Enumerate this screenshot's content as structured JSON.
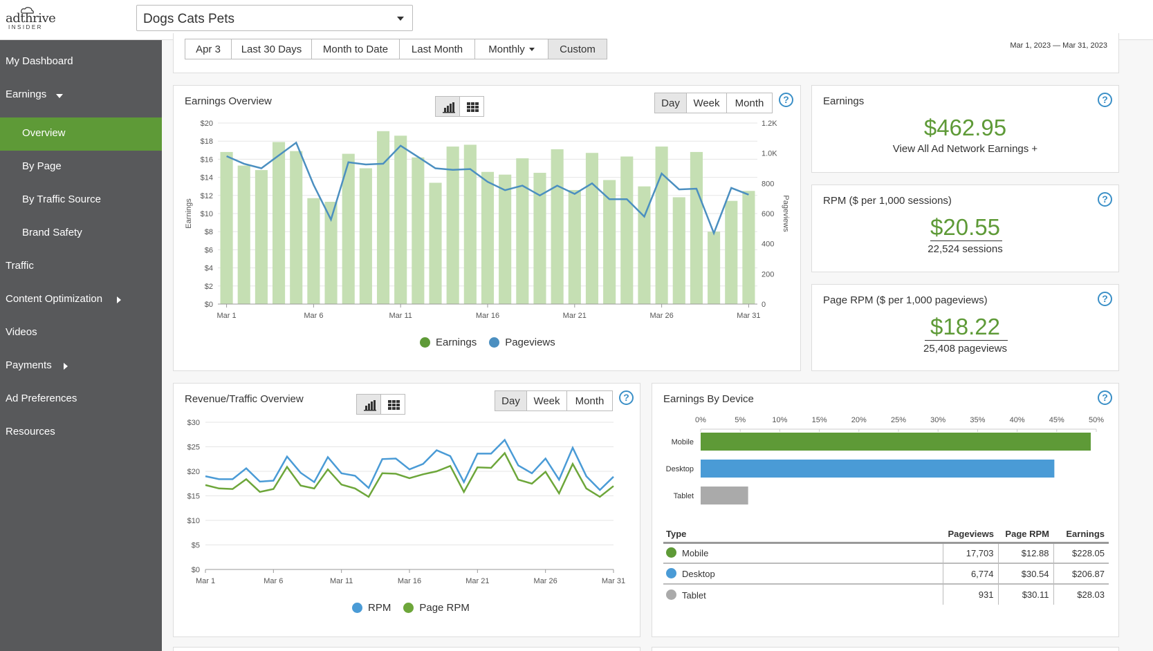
{
  "header": {
    "logo_text": "adthrive",
    "logo_sub": "INSIDER",
    "site_name": "Dogs Cats Pets"
  },
  "sidebar": {
    "items": [
      {
        "label": "My Dashboard",
        "level": "top"
      },
      {
        "label": "Earnings",
        "level": "top",
        "caret": "down"
      },
      {
        "label": "Overview",
        "level": "sub",
        "active": true
      },
      {
        "label": "By Page",
        "level": "sub"
      },
      {
        "label": "By Traffic Source",
        "level": "sub"
      },
      {
        "label": "Brand Safety",
        "level": "sub"
      },
      {
        "label": "Traffic",
        "level": "top"
      },
      {
        "label": "Content Optimization",
        "level": "top",
        "caret": "right"
      },
      {
        "label": "Videos",
        "level": "top"
      },
      {
        "label": "Payments",
        "level": "top",
        "caret": "right"
      },
      {
        "label": "Ad Preferences",
        "level": "top"
      },
      {
        "label": "Resources",
        "level": "top"
      }
    ],
    "active_color": "#5e9a37",
    "bg_color": "#58595b"
  },
  "date_bar": {
    "buttons": [
      "Apr 3",
      "Last 30 Days",
      "Month to Date",
      "Last Month",
      "Monthly",
      "Custom"
    ],
    "active": "Custom",
    "range": "Mar 1, 2023 — Mar 31, 2023"
  },
  "period_buttons": [
    "Day",
    "Week",
    "Month"
  ],
  "period_active": "Day",
  "icons": {
    "chart_toggle": "bar-chart-icon",
    "table_toggle": "grid-icon",
    "help": "question-circle-icon"
  },
  "help_glyph": "?",
  "earnings_card": {
    "title": "Earnings",
    "value": "$462.95",
    "link": "View All Ad Network Earnings +"
  },
  "rpm_card": {
    "title": "RPM ($ per 1,000 sessions)",
    "value": "$20.55",
    "sub": "22,524 sessions"
  },
  "page_rpm_card": {
    "title": "Page RPM ($ per 1,000 pageviews)",
    "value": "$18.22",
    "sub": "25,408 pageviews"
  },
  "colors": {
    "earnings": "#5e9a37",
    "bar": "#c5dfb3",
    "pageviews": "#4b8fc0",
    "rpm": "#4a9bd6",
    "page_rpm": "#6da63a",
    "desktop": "#4a9bd6",
    "tablet": "#aaaaaa"
  },
  "chart_data": [
    {
      "type": "bar",
      "title": "Earnings Overview",
      "x": [
        1,
        2,
        3,
        4,
        5,
        6,
        7,
        8,
        9,
        10,
        11,
        12,
        13,
        14,
        15,
        16,
        17,
        18,
        19,
        20,
        21,
        22,
        23,
        24,
        25,
        26,
        27,
        28,
        29,
        30,
        31
      ],
      "xticks": [
        "Mar 1",
        "Mar 6",
        "Mar 11",
        "Mar 16",
        "Mar 21",
        "Mar 26",
        "Mar 31"
      ],
      "xtick_days": [
        1,
        6,
        11,
        16,
        21,
        26,
        31
      ],
      "ylabel": "Earnings",
      "y2label": "Pageviews",
      "yticks": [
        "$0",
        "$2",
        "$4",
        "$6",
        "$8",
        "$10",
        "$12",
        "$14",
        "$16",
        "$18",
        "$20"
      ],
      "y2ticks": [
        "0",
        "200",
        "400",
        "600",
        "800",
        "1.0K",
        "1.2K"
      ],
      "ylim": [
        0,
        20
      ],
      "y2lim": [
        0,
        1200
      ],
      "series": [
        {
          "name": "Earnings",
          "kind": "bar",
          "values": [
            16.8,
            15.3,
            14.8,
            17.9,
            16.9,
            11.7,
            11.3,
            16.6,
            15.0,
            19.1,
            18.6,
            16.2,
            13.4,
            17.4,
            17.6,
            14.6,
            14.3,
            16.1,
            14.5,
            17.1,
            12.6,
            16.7,
            13.7,
            16.3,
            13.0,
            17.4,
            11.8,
            16.8,
            8.0,
            11.4,
            12.5
          ]
        },
        {
          "name": "Pageviews",
          "kind": "line",
          "values": [
            980,
            930,
            900,
            985,
            1070,
            790,
            560,
            940,
            925,
            930,
            1050,
            975,
            900,
            890,
            895,
            810,
            755,
            785,
            720,
            785,
            730,
            800,
            695,
            695,
            580,
            865,
            760,
            765,
            470,
            770,
            725
          ]
        }
      ]
    },
    {
      "type": "line",
      "title": "Revenue/Traffic Overview",
      "xticks": [
        "Mar 1",
        "Mar 6",
        "Mar 11",
        "Mar 16",
        "Mar 21",
        "Mar 26",
        "Mar 31"
      ],
      "xtick_days": [
        1,
        6,
        11,
        16,
        21,
        26,
        31
      ],
      "yticks": [
        "$0",
        "$5",
        "$10",
        "$15",
        "$20",
        "$25",
        "$30"
      ],
      "ylim": [
        0,
        30
      ],
      "series": [
        {
          "name": "RPM",
          "values": [
            19.0,
            18.4,
            18.4,
            20.6,
            17.9,
            18.1,
            23.0,
            19.7,
            17.8,
            22.9,
            19.6,
            19.1,
            16.6,
            22.5,
            22.6,
            20.4,
            21.5,
            24.3,
            23.1,
            17.8,
            23.6,
            23.6,
            26.4,
            21.2,
            19.6,
            22.6,
            18.3,
            24.8,
            19.0,
            16.2,
            18.9
          ]
        },
        {
          "name": "Page RPM",
          "values": [
            17.2,
            16.5,
            16.4,
            18.4,
            15.8,
            16.4,
            20.9,
            17.1,
            16.5,
            20.4,
            17.3,
            16.5,
            14.8,
            19.6,
            19.5,
            18.6,
            19.4,
            20.0,
            21.1,
            15.8,
            20.8,
            20.7,
            23.7,
            18.3,
            17.5,
            19.9,
            15.5,
            21.5,
            16.5,
            14.8,
            17.0
          ]
        }
      ]
    },
    {
      "type": "bar",
      "orientation": "horizontal",
      "title": "Earnings By Device",
      "categories": [
        "Mobile",
        "Desktop",
        "Tablet"
      ],
      "values": [
        49.3,
        44.7,
        6.0
      ],
      "xticks": [
        "0%",
        "5%",
        "10%",
        "15%",
        "20%",
        "25%",
        "30%",
        "35%",
        "40%",
        "45%",
        "50%"
      ],
      "xlim": [
        0,
        50
      ]
    }
  ],
  "device_table": {
    "headers": [
      "Type",
      "Pageviews",
      "Page RPM",
      "Earnings"
    ],
    "rows": [
      {
        "type": "Mobile",
        "pageviews": "17,703",
        "page_rpm": "$12.88",
        "earnings": "$228.05",
        "color": "#5e9a37"
      },
      {
        "type": "Desktop",
        "pageviews": "6,774",
        "page_rpm": "$30.54",
        "earnings": "$206.87",
        "color": "#4a9bd6"
      },
      {
        "type": "Tablet",
        "pageviews": "931",
        "page_rpm": "$30.11",
        "earnings": "$28.03",
        "color": "#aaaaaa"
      }
    ]
  }
}
